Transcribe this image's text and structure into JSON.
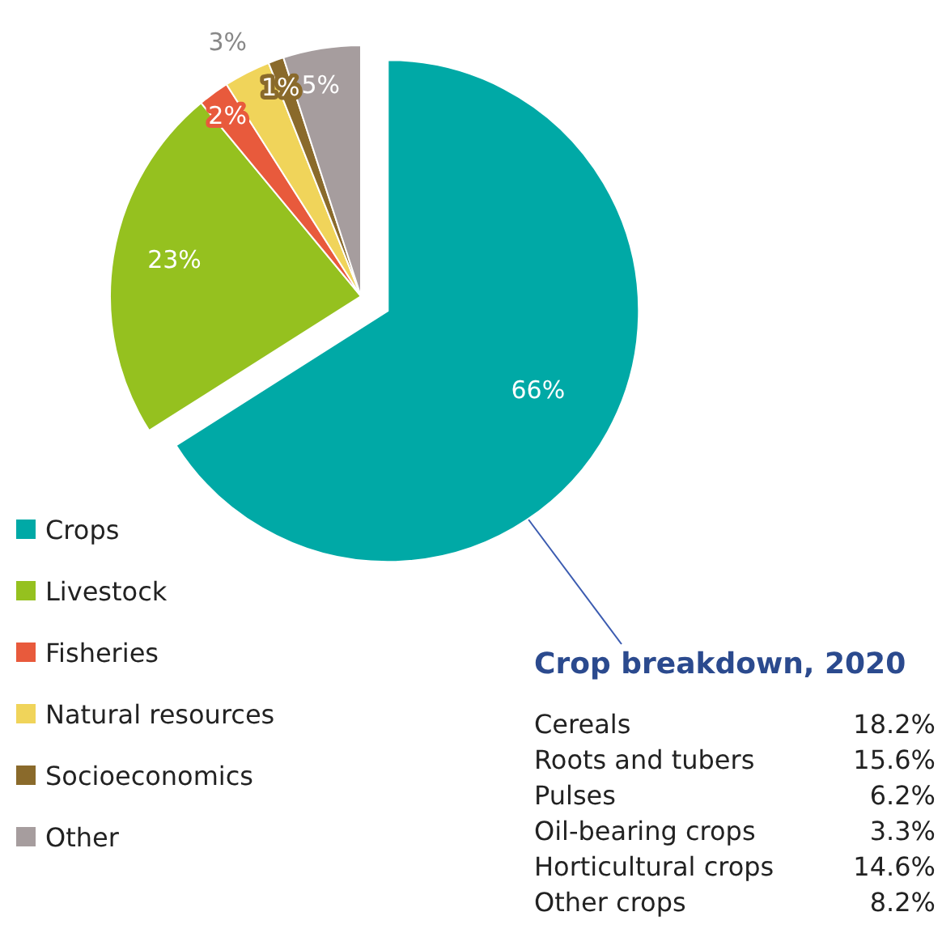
{
  "chart_data": [
    {
      "type": "pie",
      "categories": [
        "Crops",
        "Livestock",
        "Fisheries",
        "Natural resources",
        "Socioeconomics",
        "Other"
      ],
      "values": [
        66,
        23,
        2,
        3,
        1,
        5
      ],
      "value_labels": [
        "66%",
        "23%",
        "2%",
        "3%",
        "1%",
        "5%"
      ],
      "colors": [
        "#00a9a6",
        "#95c11f",
        "#e85a3c",
        "#f0d45a",
        "#8a6a2b",
        "#a69d9e"
      ],
      "legend": "bottom left"
    },
    {
      "type": "other",
      "title": "Crop breakdown, 2020",
      "categories": [
        "Cereals",
        "Roots and tubers",
        "Pulses",
        "Oil-bearing crops",
        "Horticultural crops",
        "Other crops"
      ],
      "value_labels": [
        "18.2%",
        "15.6%",
        "6.2%",
        "3.3%",
        "14.6%",
        "8.2%"
      ]
    }
  ]
}
